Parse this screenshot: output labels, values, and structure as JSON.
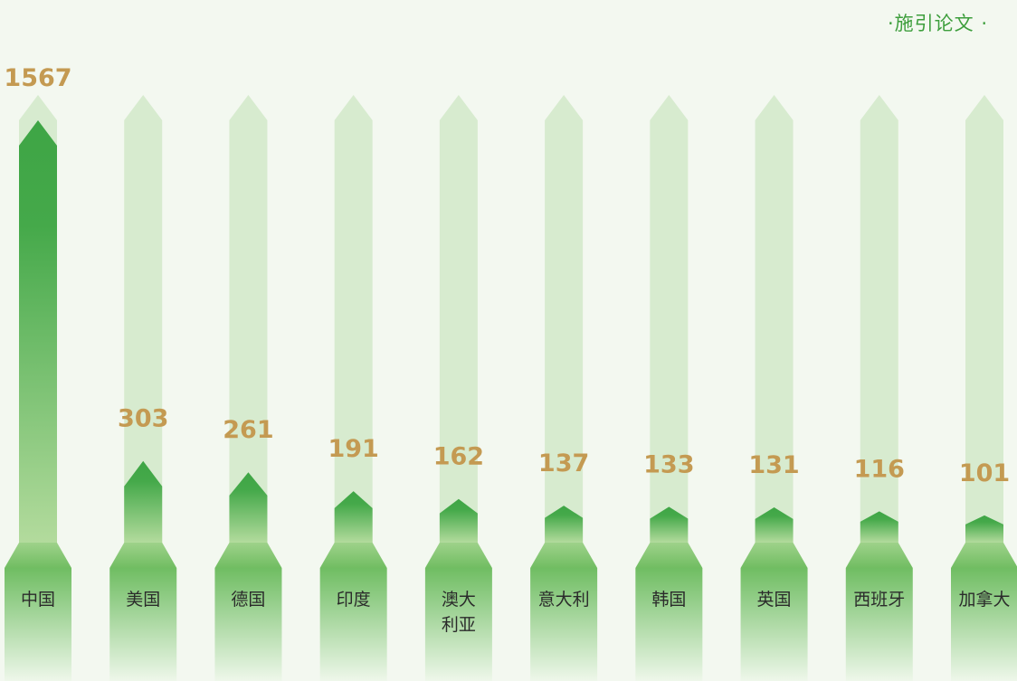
{
  "chart_data": {
    "type": "bar",
    "title": "·施引论文 ·",
    "categories": [
      "中国",
      "美国",
      "德国",
      "印度",
      "澳大利亚",
      "意大利",
      "韩国",
      "英国",
      "西班牙",
      "加拿大"
    ],
    "category_lines": [
      [
        "中国"
      ],
      [
        "美国"
      ],
      [
        "德国"
      ],
      [
        "印度"
      ],
      [
        "澳大",
        "利亚"
      ],
      [
        "意大利"
      ],
      [
        "韩国"
      ],
      [
        "英国"
      ],
      [
        "西班牙"
      ],
      [
        "加拿大"
      ]
    ],
    "values": [
      1567,
      303,
      261,
      191,
      162,
      137,
      133,
      131,
      116,
      101
    ],
    "ylim": [
      0,
      1567
    ],
    "grid": false,
    "legend": "none"
  },
  "colors": {
    "background": "#f3f8f0",
    "track": "#d7ebcf",
    "bar_top": "#3ea545",
    "bar_bottom": "#b3db9d",
    "base_top": "#6fbd62",
    "base_bottom": "#eef7ea",
    "value_label": "#c49a52",
    "title": "#3d9e3c"
  }
}
